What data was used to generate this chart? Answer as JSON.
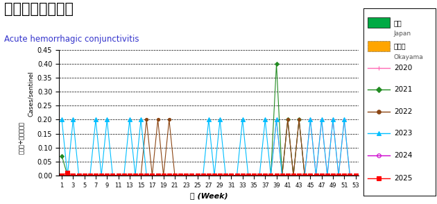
{
  "title": "急性出血性結膜炎",
  "subtitle": "Acute hemorrhagic conjunctivitis",
  "xlabel": "週 (Week)",
  "ylabel_top": "Cases/sentinel",
  "ylabel_bottom": "県件数÷定点医院数",
  "ylim": [
    0,
    0.45
  ],
  "yticks": [
    0.0,
    0.05,
    0.1,
    0.15,
    0.2,
    0.25,
    0.3,
    0.35,
    0.4,
    0.45
  ],
  "xticks": [
    1,
    3,
    5,
    7,
    9,
    11,
    13,
    15,
    17,
    19,
    21,
    23,
    25,
    27,
    29,
    31,
    33,
    35,
    37,
    39,
    41,
    43,
    45,
    47,
    49,
    51,
    53
  ],
  "weeks": [
    1,
    2,
    3,
    4,
    5,
    6,
    7,
    8,
    9,
    10,
    11,
    12,
    13,
    14,
    15,
    16,
    17,
    18,
    19,
    20,
    21,
    22,
    23,
    24,
    25,
    26,
    27,
    28,
    29,
    30,
    31,
    32,
    33,
    34,
    35,
    36,
    37,
    38,
    39,
    40,
    41,
    42,
    43,
    44,
    45,
    46,
    47,
    48,
    49,
    50,
    51,
    52,
    53
  ],
  "series": {
    "2020": {
      "color": "#FF69B4",
      "marker": "+",
      "ms": 4,
      "lw": 0.8,
      "mfc": "#FF69B4",
      "values": [
        0,
        0,
        0,
        0,
        0,
        0,
        0,
        0,
        0,
        0,
        0,
        0,
        0,
        0,
        0,
        0,
        0,
        0,
        0,
        0,
        0,
        0,
        0,
        0,
        0,
        0,
        0,
        0,
        0,
        0,
        0,
        0,
        0,
        0,
        0,
        0,
        0,
        0,
        0.2,
        0,
        0.2,
        0,
        0.2,
        0,
        0.2,
        0,
        0.2,
        0,
        0.2,
        0,
        0.2,
        0,
        0
      ]
    },
    "2021": {
      "color": "#228B22",
      "marker": "D",
      "ms": 3,
      "lw": 0.8,
      "mfc": "#228B22",
      "values": [
        0.07,
        0,
        0,
        0,
        0,
        0,
        0,
        0,
        0,
        0,
        0,
        0,
        0,
        0,
        0,
        0,
        0,
        0,
        0,
        0,
        0,
        0,
        0,
        0,
        0,
        0,
        0,
        0,
        0,
        0,
        0,
        0,
        0,
        0,
        0,
        0,
        0,
        0,
        0.4,
        0,
        0.2,
        0,
        0.2,
        0,
        0,
        0,
        0,
        0,
        0,
        0,
        0,
        0,
        0
      ]
    },
    "2022": {
      "color": "#8B4513",
      "marker": "o",
      "ms": 3,
      "lw": 0.8,
      "mfc": "#8B4513",
      "values": [
        0,
        0,
        0,
        0,
        0,
        0,
        0,
        0,
        0,
        0,
        0,
        0,
        0,
        0,
        0,
        0.2,
        0,
        0.2,
        0,
        0.2,
        0,
        0,
        0,
        0,
        0,
        0,
        0,
        0,
        0,
        0,
        0,
        0,
        0,
        0,
        0,
        0,
        0,
        0,
        0,
        0,
        0.2,
        0,
        0.2,
        0,
        0,
        0,
        0,
        0,
        0,
        0,
        0,
        0,
        0
      ]
    },
    "2023": {
      "color": "#00BFFF",
      "marker": "^",
      "ms": 4,
      "lw": 0.8,
      "mfc": "#00BFFF",
      "values": [
        0.2,
        0,
        0.2,
        0,
        0,
        0,
        0.2,
        0,
        0.2,
        0,
        0,
        0,
        0.2,
        0,
        0.2,
        0,
        0,
        0,
        0,
        0,
        0,
        0,
        0,
        0,
        0,
        0,
        0.2,
        0,
        0.2,
        0,
        0,
        0,
        0.2,
        0,
        0,
        0,
        0.2,
        0,
        0.2,
        0,
        0,
        0,
        0,
        0,
        0.2,
        0,
        0.2,
        0,
        0.2,
        0,
        0.2,
        0,
        0
      ]
    },
    "2024": {
      "color": "#CC00CC",
      "marker": "o",
      "ms": 3,
      "lw": 0.8,
      "mfc": "none",
      "values": [
        0,
        0,
        0,
        0,
        0,
        0,
        0,
        0,
        0,
        0,
        0,
        0,
        0,
        0,
        0,
        0,
        0,
        0,
        0,
        0,
        0,
        0,
        0,
        0,
        0,
        0,
        0,
        0,
        0,
        0,
        0,
        0,
        0,
        0,
        0,
        0,
        0,
        0,
        0,
        0,
        0,
        0,
        0,
        0,
        0,
        0,
        0,
        0,
        0,
        0,
        0,
        0,
        0
      ]
    },
    "2025": {
      "color": "#FF0000",
      "marker": "s",
      "ms": 4,
      "lw": 0.8,
      "mfc": "#FF0000",
      "values": [
        0,
        0.01,
        0,
        0,
        0,
        0,
        0,
        0,
        0,
        0,
        0,
        0,
        0,
        0,
        0,
        0,
        0,
        0,
        0,
        0,
        0,
        0,
        0,
        0,
        0,
        0,
        0,
        0,
        0,
        0,
        0,
        0,
        0,
        0,
        0,
        0,
        0,
        0,
        0,
        0,
        0,
        0,
        0,
        0,
        0,
        0,
        0,
        0,
        0,
        0,
        0,
        0,
        0
      ]
    }
  },
  "japan_color": "#00AA44",
  "okayama_color": "#FFA500",
  "background_color": "#ffffff",
  "grid_color": "#000000"
}
